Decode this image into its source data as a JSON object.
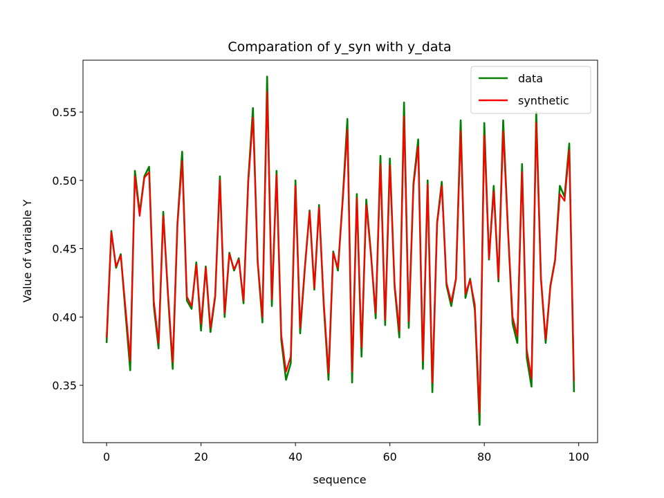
{
  "chart_data": {
    "type": "line",
    "title": "Comparation of y_syn with y_data",
    "xlabel": "sequence",
    "ylabel": "Value of variable Y",
    "xlim": [
      -5,
      104
    ],
    "ylim": [
      0.308,
      0.588
    ],
    "xticks": [
      0,
      20,
      40,
      60,
      80,
      100
    ],
    "xtick_labels": [
      "0",
      "20",
      "40",
      "60",
      "80",
      "100"
    ],
    "yticks": [
      0.35,
      0.4,
      0.45,
      0.5,
      0.55
    ],
    "ytick_labels": [
      "0.35",
      "0.40",
      "0.45",
      "0.50",
      "0.55"
    ],
    "grid": false,
    "legend_position": "top-right",
    "series": [
      {
        "name": "data",
        "color": "#008000",
        "values": [
          0.381,
          0.463,
          0.436,
          0.446,
          0.403,
          0.361,
          0.507,
          0.476,
          0.503,
          0.51,
          0.408,
          0.377,
          0.477,
          0.416,
          0.362,
          0.468,
          0.521,
          0.412,
          0.406,
          0.44,
          0.39,
          0.437,
          0.389,
          0.415,
          0.503,
          0.4,
          0.447,
          0.434,
          0.443,
          0.41,
          0.5,
          0.553,
          0.44,
          0.396,
          0.576,
          0.408,
          0.507,
          0.383,
          0.354,
          0.366,
          0.5,
          0.388,
          0.436,
          0.478,
          0.42,
          0.482,
          0.408,
          0.354,
          0.448,
          0.434,
          0.486,
          0.545,
          0.352,
          0.49,
          0.371,
          0.486,
          0.446,
          0.399,
          0.518,
          0.394,
          0.516,
          0.422,
          0.385,
          0.557,
          0.392,
          0.498,
          0.53,
          0.362,
          0.5,
          0.345,
          0.469,
          0.499,
          0.423,
          0.408,
          0.428,
          0.544,
          0.414,
          0.428,
          0.405,
          0.321,
          0.542,
          0.442,
          0.496,
          0.426,
          0.544,
          0.465,
          0.395,
          0.381,
          0.512,
          0.37,
          0.349,
          0.55,
          0.428,
          0.381,
          0.423,
          0.442,
          0.496,
          0.488,
          0.527,
          0.345
        ]
      },
      {
        "name": "synthetic",
        "color": "#ff0000",
        "values": [
          0.385,
          0.462,
          0.437,
          0.445,
          0.407,
          0.368,
          0.503,
          0.474,
          0.502,
          0.506,
          0.412,
          0.381,
          0.474,
          0.418,
          0.367,
          0.467,
          0.514,
          0.415,
          0.408,
          0.438,
          0.395,
          0.436,
          0.392,
          0.416,
          0.5,
          0.403,
          0.446,
          0.435,
          0.442,
          0.412,
          0.498,
          0.546,
          0.441,
          0.4,
          0.565,
          0.413,
          0.504,
          0.387,
          0.36,
          0.371,
          0.496,
          0.392,
          0.437,
          0.477,
          0.421,
          0.48,
          0.411,
          0.359,
          0.447,
          0.436,
          0.484,
          0.537,
          0.36,
          0.487,
          0.378,
          0.482,
          0.445,
          0.403,
          0.512,
          0.398,
          0.511,
          0.424,
          0.39,
          0.547,
          0.397,
          0.496,
          0.525,
          0.368,
          0.497,
          0.352,
          0.468,
          0.496,
          0.425,
          0.411,
          0.428,
          0.536,
          0.417,
          0.427,
          0.409,
          0.33,
          0.533,
          0.443,
          0.492,
          0.428,
          0.536,
          0.465,
          0.4,
          0.386,
          0.506,
          0.376,
          0.355,
          0.542,
          0.429,
          0.384,
          0.422,
          0.441,
          0.49,
          0.485,
          0.522,
          0.353
        ]
      }
    ]
  }
}
